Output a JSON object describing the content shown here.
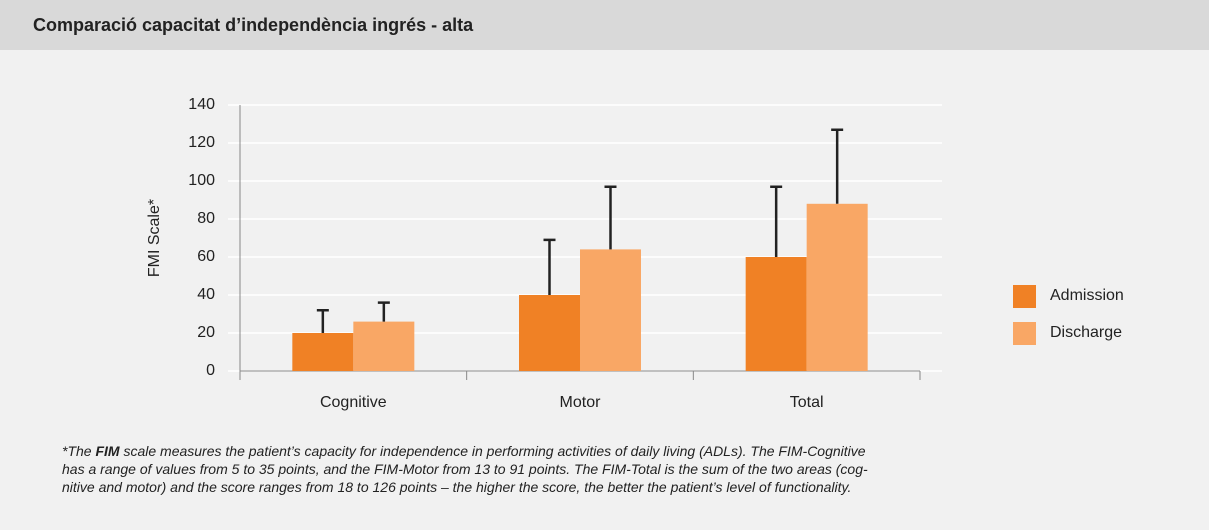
{
  "chart_data": {
    "type": "bar",
    "title": "Comparació capacitat d’independència ingrés - alta",
    "ylabel": "FMI Scale*",
    "categories": [
      "Cognitive",
      "Motor",
      "Total"
    ],
    "series": [
      {
        "name": "Admission",
        "color": "#f08125",
        "values": [
          20,
          40,
          60
        ],
        "errors": [
          12,
          29,
          37
        ]
      },
      {
        "name": "Discharge",
        "color": "#f9a765",
        "values": [
          26,
          64,
          88
        ],
        "errors": [
          10,
          33,
          39
        ]
      }
    ],
    "ylim": [
      0,
      140
    ],
    "yticks": [
      0,
      20,
      40,
      60,
      80,
      100,
      120,
      140
    ],
    "grid": true,
    "legend": "right",
    "footnote": [
      [
        "*The ",
        "FIM",
        " scale measures the patient’s capacity for independence in performing activities of daily living (ADLs). The FIM-Cognitive"
      ],
      [
        "has a range of values from 5 to 35 points, and the FIM-Motor from 13 to 91 points. The FIM-Total is the sum of the two areas (cog-"
      ],
      [
        "nitive and motor) and the score ranges from 18 to 126 points – the higher the score, the better the patient’s level of functionality."
      ]
    ]
  }
}
